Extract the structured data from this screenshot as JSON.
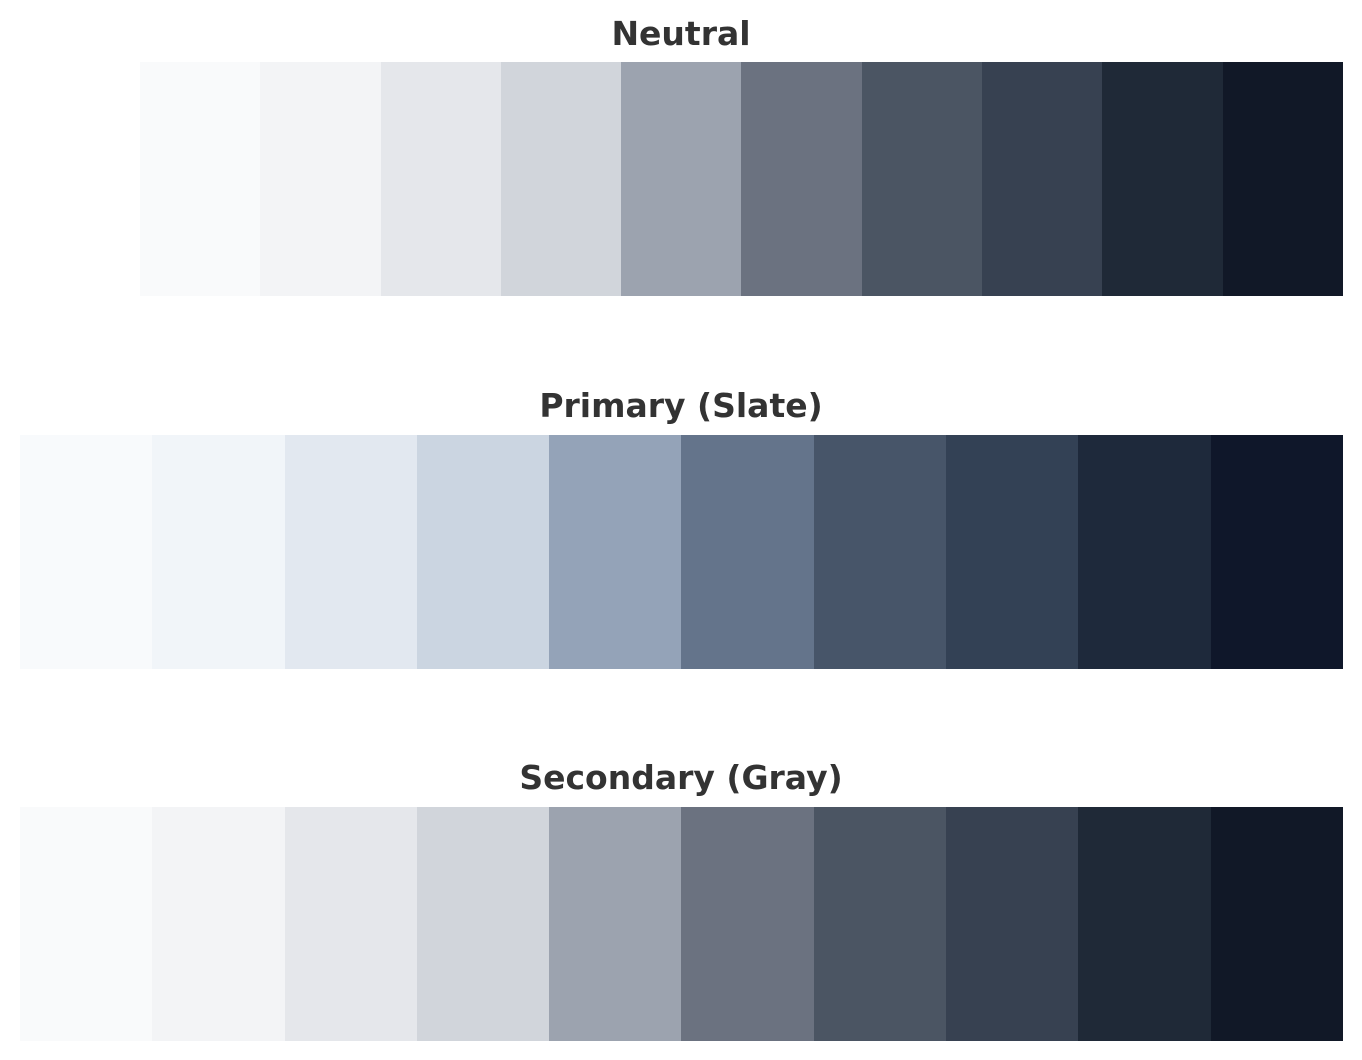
{
  "palettes": [
    {
      "id": "neutral",
      "title": "Neutral",
      "swatches": [
        "#f9fafb",
        "#f3f4f6",
        "#e5e7eb",
        "#d1d5db",
        "#9ca3af",
        "#6b7280",
        "#4b5563",
        "#374151",
        "#1f2937",
        "#111827"
      ]
    },
    {
      "id": "primary",
      "title": "Primary (Slate)",
      "swatches": [
        "#f8fafc",
        "#f1f5f9",
        "#e2e8f0",
        "#cbd5e1",
        "#94a3b8",
        "#64748b",
        "#475569",
        "#334155",
        "#1e293b",
        "#0f172a"
      ]
    },
    {
      "id": "secondary",
      "title": "Secondary (Gray)",
      "swatches": [
        "#f9fafb",
        "#f3f4f6",
        "#e5e7eb",
        "#d1d5db",
        "#9ca3af",
        "#6b7280",
        "#4b5563",
        "#374151",
        "#1f2937",
        "#111827"
      ]
    }
  ]
}
